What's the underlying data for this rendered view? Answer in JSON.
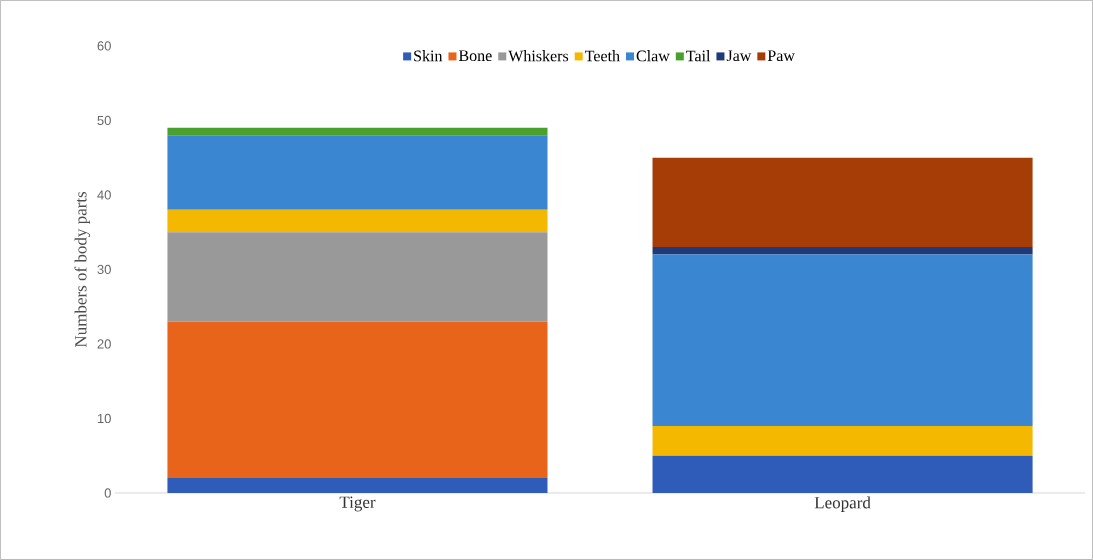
{
  "chart_data": {
    "type": "bar",
    "stacked": true,
    "ylabel": "Numbers of body parts",
    "categories": [
      "Tiger",
      "Leopard"
    ],
    "series": [
      {
        "name": "Skin",
        "color": "#2e5cb8",
        "values": [
          2,
          5
        ]
      },
      {
        "name": "Bone",
        "color": "#e8641a",
        "values": [
          21,
          0
        ]
      },
      {
        "name": "Whiskers",
        "color": "#999999",
        "values": [
          12,
          0
        ]
      },
      {
        "name": "Teeth",
        "color": "#f5b800",
        "values": [
          3,
          4
        ]
      },
      {
        "name": "Claw",
        "color": "#3a86d0",
        "values": [
          10,
          23
        ]
      },
      {
        "name": "Tail",
        "color": "#4aa02c",
        "values": [
          1,
          0
        ]
      },
      {
        "name": "Jaw",
        "color": "#1f3a7a",
        "values": [
          0,
          1
        ]
      },
      {
        "name": "Paw",
        "color": "#a63c06",
        "values": [
          0,
          12
        ]
      }
    ],
    "ylim": [
      0,
      60
    ],
    "yticks": [
      0,
      10,
      20,
      30,
      40,
      50,
      60
    ],
    "grid": false,
    "legend": "top"
  }
}
